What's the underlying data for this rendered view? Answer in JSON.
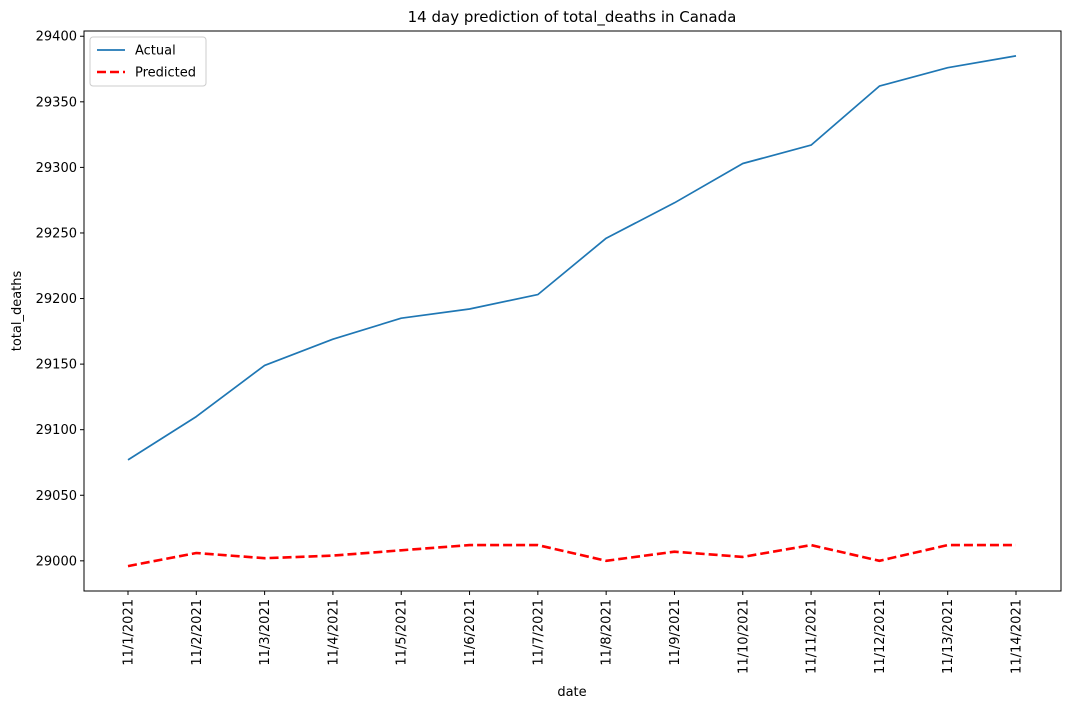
{
  "chart_data": {
    "type": "line",
    "title": "14 day prediction of total_deaths in Canada",
    "xlabel": "date",
    "ylabel": "total_deaths",
    "categories": [
      "11/1/2021",
      "11/2/2021",
      "11/3/2021",
      "11/4/2021",
      "11/5/2021",
      "11/6/2021",
      "11/7/2021",
      "11/8/2021",
      "11/9/2021",
      "11/10/2021",
      "11/11/2021",
      "11/12/2021",
      "11/13/2021",
      "11/14/2021"
    ],
    "ylim": [
      28977,
      29404
    ],
    "yticks": [
      29000,
      29050,
      29100,
      29150,
      29200,
      29250,
      29300,
      29350,
      29400
    ],
    "grid": false,
    "legend": "top-left",
    "series": [
      {
        "name": "Actual",
        "color": "#1f77b4",
        "style": "solid",
        "values": [
          29077,
          29110,
          29149,
          29169,
          29185,
          29192,
          29203,
          29246,
          29273,
          29303,
          29317,
          29362,
          29376,
          29385
        ]
      },
      {
        "name": "Predicted",
        "color": "#ff0000",
        "style": "dashed",
        "values": [
          28996,
          29006,
          29002,
          29004,
          29008,
          29012,
          29012,
          29000,
          29007,
          29003,
          29012,
          29000,
          29012,
          29012
        ]
      }
    ]
  }
}
